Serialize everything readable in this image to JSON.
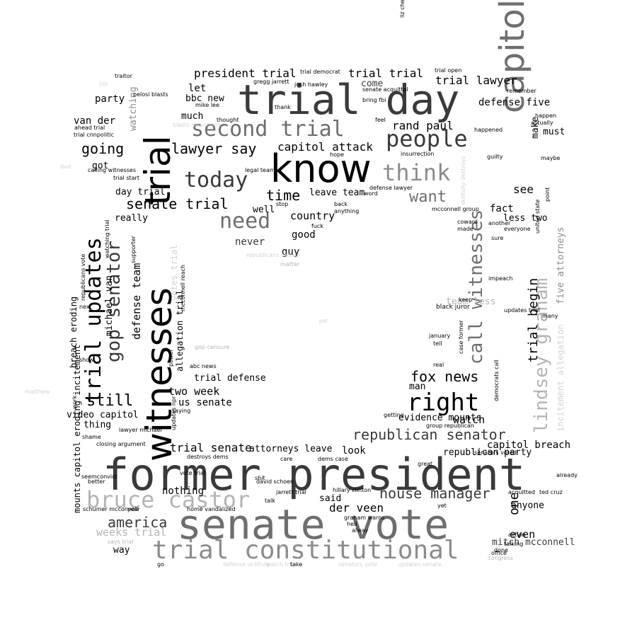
{
  "colors": {
    "black": "#000000",
    "dark": "#3a3a3a",
    "mid": "#6e6e6e",
    "gray": "#8c8c8c",
    "light": "#b4b4b4",
    "faint": "#d2d2d2"
  },
  "words": [
    {
      "text": "former president",
      "size": 62,
      "color": "#3a3a3a",
      "mono": true
    },
    {
      "text": "senate vote",
      "size": 58,
      "color": "#6e6e6e",
      "mono": true
    },
    {
      "text": "trial day",
      "size": 58,
      "color": "#3a3a3a",
      "mono": true
    },
    {
      "text": "know",
      "size": 54,
      "color": "#000000"
    },
    {
      "text": "witnesses",
      "size": 50,
      "color": "#000000",
      "rot": true
    },
    {
      "text": "trial",
      "size": 50,
      "color": "#000000",
      "rot": true
    },
    {
      "text": "capitol riot",
      "size": 48,
      "color": "#6e6e6e",
      "rot": true
    },
    {
      "text": "trial constitutional",
      "size": 36,
      "color": "#8c8c8c",
      "mono": true
    },
    {
      "text": "bruce castor",
      "size": 32,
      "color": "#b4b4b4",
      "mono": true
    },
    {
      "text": "second trial",
      "size": 30,
      "color": "#6e6e6e",
      "mono": true
    },
    {
      "text": "people",
      "size": 32,
      "color": "#3a3a3a",
      "mono": true
    },
    {
      "text": "think",
      "size": 32,
      "color": "#8c8c8c",
      "mono": true
    },
    {
      "text": "right",
      "size": 34,
      "color": "#000000",
      "mono": true
    },
    {
      "text": "need",
      "size": 30,
      "color": "#6e6e6e",
      "mono": true
    },
    {
      "text": "today",
      "size": 30,
      "color": "#3a3a3a",
      "mono": true
    },
    {
      "text": "trial updates",
      "size": 30,
      "color": "#000000",
      "rot": true,
      "mono": true
    },
    {
      "text": "gop senator",
      "size": 26,
      "color": "#3a3a3a",
      "rot": true,
      "mono": true
    },
    {
      "text": "call witnesses",
      "size": 26,
      "color": "#6e6e6e",
      "rot": true,
      "mono": true
    },
    {
      "text": "lindsey graham",
      "size": 26,
      "color": "#b4b4b4",
      "rot": true,
      "mono": true
    },
    {
      "text": "still",
      "size": 22,
      "color": "#000000",
      "mono": true
    },
    {
      "text": "going",
      "size": 20,
      "color": "#000000",
      "mono": true
    },
    {
      "text": "lawyer say",
      "size": 20,
      "color": "#000000",
      "mono": true
    },
    {
      "text": "senate trial",
      "size": 20,
      "color": "#000000",
      "mono": true
    },
    {
      "text": "capitol attack",
      "size": 16,
      "color": "#000000",
      "mono": true
    },
    {
      "text": "time",
      "size": 20,
      "color": "#000000",
      "mono": true
    },
    {
      "text": "want",
      "size": 22,
      "color": "#6e6e6e",
      "mono": true
    },
    {
      "text": "fox news",
      "size": 20,
      "color": "#000000",
      "mono": true
    },
    {
      "text": "republican senator",
      "size": 20,
      "color": "#3a3a3a",
      "mono": true
    },
    {
      "text": "house manager",
      "size": 20,
      "color": "#3a3a3a",
      "mono": true
    },
    {
      "text": "america",
      "size": 20,
      "color": "#3a3a3a",
      "mono": true
    },
    {
      "text": "weeks trial",
      "size": 15,
      "color": "#b4b4b4",
      "mono": true
    },
    {
      "text": "rand paul",
      "size": 16,
      "color": "#000000",
      "mono": true
    },
    {
      "text": "president trial",
      "size": 16,
      "color": "#000000",
      "mono": true
    },
    {
      "text": "trial trial",
      "size": 16,
      "color": "#000000",
      "mono": true
    },
    {
      "text": "trial lawyer",
      "size": 16,
      "color": "#000000",
      "mono": true
    },
    {
      "text": "defense five",
      "size": 14,
      "color": "#000000",
      "mono": true
    },
    {
      "text": "van der",
      "size": 14,
      "color": "#000000",
      "mono": true
    },
    {
      "text": "party",
      "size": 14,
      "color": "#000000",
      "mono": true
    },
    {
      "text": "let",
      "size": 14,
      "color": "#000000",
      "mono": true
    },
    {
      "text": "much",
      "size": 13,
      "color": "#000000",
      "mono": true
    },
    {
      "text": "bbc new",
      "size": 13,
      "color": "#000000",
      "mono": true
    },
    {
      "text": "leave team",
      "size": 13,
      "color": "#000000",
      "mono": true
    },
    {
      "text": "country",
      "size": 15,
      "color": "#000000",
      "mono": true
    },
    {
      "text": "good",
      "size": 14,
      "color": "#000000",
      "mono": true
    },
    {
      "text": "guy",
      "size": 14,
      "color": "#000000",
      "mono": true
    },
    {
      "text": "never",
      "size": 14,
      "color": "#3a3a3a",
      "mono": true
    },
    {
      "text": "team less",
      "size": 13,
      "color": "#b4b4b4",
      "mono": true
    },
    {
      "text": "trial begin",
      "size": 18,
      "color": "#000000",
      "rot": true,
      "mono": true
    },
    {
      "text": "five attorneys",
      "size": 13,
      "color": "#8c8c8c",
      "rot": true,
      "mono": true
    },
    {
      "text": "incitement allegation",
      "size": 12,
      "color": "#d2d2d2",
      "rot": true,
      "mono": true
    },
    {
      "text": "votes trial",
      "size": 12,
      "color": "#d2d2d2",
      "rot": true,
      "mono": true
    },
    {
      "text": "defense team",
      "size": 15,
      "color": "#000000",
      "rot": true,
      "mono": true
    },
    {
      "text": "michael van",
      "size": 13,
      "color": "#000000",
      "rot": true,
      "mono": true
    },
    {
      "text": "breach eroding",
      "size": 12,
      "color": "#000000",
      "rot": true,
      "mono": true
    },
    {
      "text": "mounts capitol eroding incitement",
      "size": 12,
      "color": "#000000",
      "rot": true,
      "mono": true
    },
    {
      "text": "allegation trial",
      "size": 12,
      "color": "#000000",
      "rot": true,
      "mono": true
    },
    {
      "text": "watching",
      "size": 13,
      "color": "#8c8c8c",
      "rot": true,
      "mono": true
    },
    {
      "text": "make",
      "size": 13,
      "color": "#000000",
      "rot": true,
      "mono": true
    },
    {
      "text": "see",
      "size": 16,
      "color": "#000000",
      "mono": true
    },
    {
      "text": "fact",
      "size": 14,
      "color": "#000000",
      "mono": true
    },
    {
      "text": "less two",
      "size": 13,
      "color": "#000000",
      "mono": true
    },
    {
      "text": "must",
      "size": 13,
      "color": "#000000",
      "mono": true
    },
    {
      "text": "man",
      "size": 13,
      "color": "#000000",
      "mono": true
    },
    {
      "text": "evidence mounts",
      "size": 13,
      "color": "#000000",
      "mono": true
    },
    {
      "text": "watch",
      "size": 15,
      "color": "#000000",
      "mono": true
    },
    {
      "text": "capitol breach",
      "size": 14,
      "color": "#000000",
      "mono": true
    },
    {
      "text": "republican party",
      "size": 13,
      "color": "#000000",
      "mono": true
    },
    {
      "text": "look",
      "size": 14,
      "color": "#000000",
      "mono": true
    },
    {
      "text": "attorneys leave",
      "size": 13,
      "color": "#000000",
      "mono": true
    },
    {
      "text": "trial senate",
      "size": 16,
      "color": "#000000",
      "mono": true
    },
    {
      "text": "video capitol",
      "size": 13,
      "color": "#000000",
      "mono": true
    },
    {
      "text": "us senate",
      "size": 14,
      "color": "#000000",
      "mono": true
    },
    {
      "text": "two week",
      "size": 15,
      "color": "#000000",
      "mono": true
    },
    {
      "text": "trial defense",
      "size": 13,
      "color": "#000000",
      "mono": true
    },
    {
      "text": "thing",
      "size": 13,
      "color": "#000000",
      "mono": true
    },
    {
      "text": "really",
      "size": 13,
      "color": "#000000",
      "mono": true
    },
    {
      "text": "day trial",
      "size": 13,
      "color": "#000000",
      "mono": true
    },
    {
      "text": "got",
      "size": 13,
      "color": "#000000",
      "mono": true
    },
    {
      "text": "well",
      "size": 13,
      "color": "#000000",
      "mono": true
    },
    {
      "text": "said",
      "size": 13,
      "color": "#000000",
      "mono": true
    },
    {
      "text": "der veen",
      "size": 16,
      "color": "#000000",
      "mono": true
    },
    {
      "text": "mitch mcconnell",
      "size": 13,
      "color": "#3a3a3a",
      "mono": true
    },
    {
      "text": "one",
      "size": 18,
      "color": "#000000",
      "rot": true,
      "mono": true
    },
    {
      "text": "even",
      "size": 15,
      "color": "#000000",
      "mono": true
    },
    {
      "text": "anyone",
      "size": 13,
      "color": "#000000",
      "mono": true
    },
    {
      "text": "nothing",
      "size": 14,
      "color": "#000000",
      "mono": true
    },
    {
      "text": "way",
      "size": 13,
      "color": "#000000",
      "mono": true
    },
    {
      "text": "come",
      "size": 13,
      "color": "#3a3a3a",
      "mono": true
    },
    {
      "text": "senate acquittal",
      "size": 8,
      "color": "#000000"
    },
    {
      "text": "bring fbi",
      "size": 8,
      "color": "#000000"
    },
    {
      "text": "trial open",
      "size": 8,
      "color": "#000000"
    },
    {
      "text": "trial democrat",
      "size": 8,
      "color": "#000000"
    },
    {
      "text": "gregg jarrett",
      "size": 8,
      "color": "#000000"
    },
    {
      "text": "josh hawley",
      "size": 8,
      "color": "#000000"
    },
    {
      "text": "thank",
      "size": 8,
      "color": "#000000"
    },
    {
      "text": "feel",
      "size": 8,
      "color": "#000000"
    },
    {
      "text": "hope",
      "size": 8,
      "color": "#000000"
    },
    {
      "text": "insurrection",
      "size": 8,
      "color": "#000000"
    },
    {
      "text": "legal team",
      "size": 8,
      "color": "#000000"
    },
    {
      "text": "thought",
      "size": 8,
      "color": "#000000"
    },
    {
      "text": "traitor",
      "size": 8,
      "color": "#000000"
    },
    {
      "text": "pelosi blasts",
      "size": 8,
      "color": "#000000"
    },
    {
      "text": "mike lee",
      "size": 8,
      "color": "#000000"
    },
    {
      "text": "ahead trial",
      "size": 8,
      "color": "#000000"
    },
    {
      "text": "trial cnnpolitic",
      "size": 8,
      "color": "#000000"
    },
    {
      "text": "calling witnesses",
      "size": 8,
      "color": "#000000"
    },
    {
      "text": "trial start",
      "size": 8,
      "color": "#000000"
    },
    {
      "text": "remember",
      "size": 8,
      "color": "#000000"
    },
    {
      "text": "happen",
      "size": 8,
      "color": "#000000"
    },
    {
      "text": "actually",
      "size": 8,
      "color": "#000000"
    },
    {
      "text": "happened",
      "size": 8,
      "color": "#000000"
    },
    {
      "text": "guilty",
      "size": 8,
      "color": "#000000"
    },
    {
      "text": "maybe",
      "size": 8,
      "color": "#000000"
    },
    {
      "text": "another",
      "size": 8,
      "color": "#000000"
    },
    {
      "text": "everyone",
      "size": 8,
      "color": "#000000"
    },
    {
      "text": "coward",
      "size": 8,
      "color": "#000000"
    },
    {
      "text": "made",
      "size": 8,
      "color": "#000000"
    },
    {
      "text": "sure",
      "size": 8,
      "color": "#000000"
    },
    {
      "text": "impeach",
      "size": 8,
      "color": "#000000"
    },
    {
      "text": "keep",
      "size": 8,
      "color": "#000000"
    },
    {
      "text": "black juror",
      "size": 9,
      "color": "#000000"
    },
    {
      "text": "updates trial",
      "size": 8,
      "color": "#000000"
    },
    {
      "text": "many",
      "size": 8,
      "color": "#000000"
    },
    {
      "text": "january",
      "size": 8,
      "color": "#000000"
    },
    {
      "text": "tell",
      "size": 8,
      "color": "#000000"
    },
    {
      "text": "real",
      "size": 8,
      "color": "#000000"
    },
    {
      "text": "mcconnell group",
      "size": 8,
      "color": "#000000"
    },
    {
      "text": "word",
      "size": 8,
      "color": "#000000"
    },
    {
      "text": "back",
      "size": 8,
      "color": "#000000"
    },
    {
      "text": "anything",
      "size": 8,
      "color": "#000000"
    },
    {
      "text": "fuck",
      "size": 8,
      "color": "#000000"
    },
    {
      "text": "stop",
      "size": 8,
      "color": "#000000"
    },
    {
      "text": "defense lawyer",
      "size": 8,
      "color": "#000000"
    },
    {
      "text": "republicans senate",
      "size": 8,
      "color": "#d2d2d2"
    },
    {
      "text": "matter",
      "size": 8,
      "color": "#b4b4b4"
    },
    {
      "text": "gop censure",
      "size": 8,
      "color": "#b4b4b4"
    },
    {
      "text": "abc news",
      "size": 8,
      "color": "#000000"
    },
    {
      "text": "saying",
      "size": 8,
      "color": "#000000"
    },
    {
      "text": "lawyer michael",
      "size": 8,
      "color": "#000000"
    },
    {
      "text": "shame",
      "size": 8,
      "color": "#000000"
    },
    {
      "text": "closing argument",
      "size": 8,
      "color": "#000000"
    },
    {
      "text": "destroys dems",
      "size": 8,
      "color": "#000000"
    },
    {
      "text": "vote trial",
      "size": 8,
      "color": "#000000"
    },
    {
      "text": "dems case",
      "size": 8,
      "color": "#000000"
    },
    {
      "text": "care",
      "size": 8,
      "color": "#000000"
    },
    {
      "text": "shit",
      "size": 8,
      "color": "#000000"
    },
    {
      "text": "david schoen",
      "size": 8,
      "color": "#000000"
    },
    {
      "text": "jarrett trial",
      "size": 8,
      "color": "#000000"
    },
    {
      "text": "talk",
      "size": 8,
      "color": "#000000"
    },
    {
      "text": "hillary clinton",
      "size": 8,
      "color": "#000000"
    },
    {
      "text": "graham warns",
      "size": 8,
      "color": "#000000"
    },
    {
      "text": "hell",
      "size": 8,
      "color": "#000000"
    },
    {
      "text": "alway",
      "size": 8,
      "color": "#000000"
    },
    {
      "text": "great",
      "size": 8,
      "color": "#000000"
    },
    {
      "text": "senators voted",
      "size": 8,
      "color": "#000000"
    },
    {
      "text": "group republican",
      "size": 8,
      "color": "#000000"
    },
    {
      "text": "getting",
      "size": 8,
      "color": "#000000"
    },
    {
      "text": "yet",
      "size": 8,
      "color": "#000000"
    },
    {
      "text": "acquitted",
      "size": 8,
      "color": "#000000"
    },
    {
      "text": "ted cruz",
      "size": 8,
      "color": "#000000"
    },
    {
      "text": "already",
      "size": 8,
      "color": "#000000"
    },
    {
      "text": "action",
      "size": 8,
      "color": "#000000"
    },
    {
      "text": "talking",
      "size": 8,
      "color": "#000000"
    },
    {
      "text": "done",
      "size": 8,
      "color": "#000000"
    },
    {
      "text": "office",
      "size": 8,
      "color": "#000000"
    },
    {
      "text": "congress",
      "size": 8,
      "color": "#b4b4b4"
    },
    {
      "text": "year",
      "size": 8,
      "color": "#000000"
    },
    {
      "text": "home vandalized",
      "size": 8,
      "color": "#000000"
    },
    {
      "text": "schumer mcconnell",
      "size": 8,
      "color": "#000000"
    },
    {
      "text": "says trial",
      "size": 8,
      "color": "#b4b4b4"
    },
    {
      "text": "seemconvict",
      "size": 8,
      "color": "#000000"
    },
    {
      "text": "better",
      "size": 8,
      "color": "#000000"
    },
    {
      "text": "next",
      "size": 8,
      "color": "#000000"
    },
    {
      "text": "show",
      "size": 8,
      "color": "#000000"
    },
    {
      "text": "go",
      "size": 8,
      "color": "#000000"
    },
    {
      "text": "defense skillfully",
      "size": 8,
      "color": "#d2d2d2"
    },
    {
      "text": "watch trial",
      "size": 8,
      "color": "#d2d2d2"
    },
    {
      "text": "take",
      "size": 8,
      "color": "#000000"
    },
    {
      "text": "senators vote",
      "size": 8,
      "color": "#d2d2d2"
    },
    {
      "text": "updates senate",
      "size": 8,
      "color": "#d2d2d2"
    },
    {
      "text": "blasts mcconnell",
      "size": 8,
      "color": "#d2d2d2"
    },
    {
      "text": "republicans vote",
      "size": 8,
      "color": "#000000",
      "rot": true
    },
    {
      "text": "watching trial",
      "size": 8,
      "color": "#000000",
      "rot": true
    },
    {
      "text": "supporter",
      "size": 8,
      "color": "#000000",
      "rot": true
    },
    {
      "text": "work",
      "size": 8,
      "color": "#000000",
      "rot": true
    },
    {
      "text": "updates npr",
      "size": 8,
      "color": "#000000",
      "rot": true
    },
    {
      "text": "power",
      "size": 8,
      "color": "#000000",
      "rot": true
    },
    {
      "text": "mcconnell reach",
      "size": 8,
      "color": "#000000",
      "rot": true
    },
    {
      "text": "skillfully destroys",
      "size": 8,
      "color": "#d2d2d2",
      "rot": true
    },
    {
      "text": "case former",
      "size": 8,
      "color": "#000000",
      "rot": true
    },
    {
      "text": "democrats call",
      "size": 8,
      "color": "#000000",
      "rot": true
    },
    {
      "text": "united state",
      "size": 8,
      "color": "#000000",
      "rot": true
    },
    {
      "text": "point",
      "size": 8,
      "color": "#000000",
      "rot": true
    },
    {
      "text": "liz cheney",
      "size": 8,
      "color": "#000000",
      "rot": true
    },
    {
      "text": "job",
      "size": 8,
      "color": "#d2d2d2"
    },
    {
      "text": "dud",
      "size": 8,
      "color": "#d2d2d2"
    },
    {
      "text": "matthew",
      "size": 8,
      "color": "#d2d2d2"
    },
    {
      "text": "yet",
      "size": 8,
      "color": "#d2d2d2"
    }
  ]
}
